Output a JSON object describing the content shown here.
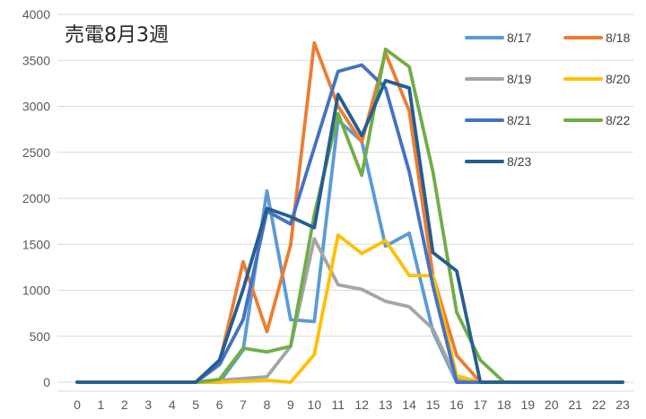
{
  "chart_data": {
    "type": "line",
    "title": "売電8月3週",
    "xlabel": "",
    "ylabel": "",
    "ylim": [
      0,
      4000
    ],
    "yticks": [
      0,
      500,
      1000,
      1500,
      2000,
      2500,
      3000,
      3500,
      4000
    ],
    "categories": [
      0,
      1,
      2,
      3,
      4,
      5,
      6,
      7,
      8,
      9,
      10,
      11,
      12,
      13,
      14,
      15,
      16,
      17,
      18,
      19,
      20,
      21,
      22,
      23
    ],
    "grid": true,
    "legend_position": "top-right",
    "series": [
      {
        "name": "8/17",
        "color": "#5B9BD5",
        "values": [
          0,
          0,
          0,
          0,
          0,
          0,
          0,
          350,
          2080,
          680,
          660,
          2850,
          2620,
          1480,
          1620,
          550,
          0,
          0,
          0,
          0,
          0,
          0,
          0,
          0
        ]
      },
      {
        "name": "8/18",
        "color": "#ED7D31",
        "values": [
          0,
          0,
          0,
          0,
          0,
          0,
          210,
          1310,
          550,
          1490,
          3690,
          3000,
          2610,
          3580,
          2950,
          1160,
          290,
          0,
          0,
          0,
          0,
          0,
          0,
          0
        ]
      },
      {
        "name": "8/19",
        "color": "#A5A5A5",
        "values": [
          0,
          0,
          0,
          0,
          0,
          0,
          20,
          40,
          60,
          390,
          1560,
          1060,
          1010,
          880,
          820,
          580,
          30,
          0,
          0,
          0,
          0,
          0,
          0,
          0
        ]
      },
      {
        "name": "8/20",
        "color": "#FFC000",
        "values": [
          0,
          0,
          0,
          0,
          0,
          0,
          0,
          10,
          20,
          0,
          300,
          1600,
          1400,
          1540,
          1160,
          1160,
          70,
          0,
          0,
          0,
          0,
          0,
          0,
          0
        ]
      },
      {
        "name": "8/21",
        "color": "#4472C4",
        "values": [
          0,
          0,
          0,
          0,
          0,
          0,
          190,
          680,
          1860,
          1720,
          2550,
          3380,
          3450,
          3200,
          2290,
          1050,
          0,
          0,
          0,
          0,
          0,
          0,
          0,
          0
        ]
      },
      {
        "name": "8/22",
        "color": "#70AD47",
        "values": [
          0,
          0,
          0,
          0,
          0,
          0,
          30,
          370,
          330,
          390,
          1820,
          2920,
          2250,
          3620,
          3430,
          2290,
          760,
          240,
          0,
          0,
          0,
          0,
          0,
          0
        ]
      },
      {
        "name": "8/23",
        "color": "#255E91",
        "values": [
          0,
          0,
          0,
          0,
          0,
          0,
          240,
          1010,
          1890,
          1800,
          1680,
          3130,
          2680,
          3280,
          3200,
          1410,
          1210,
          0,
          0,
          0,
          0,
          0,
          0,
          0
        ]
      }
    ]
  }
}
